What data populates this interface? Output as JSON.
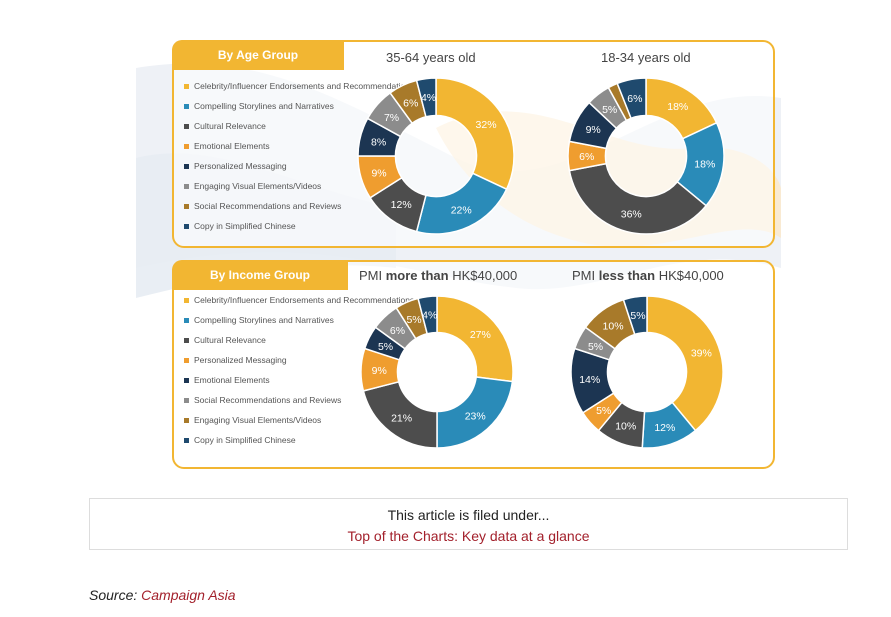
{
  "colors": {
    "yellow": "#f2b632",
    "blue": "#2a8bb8",
    "darkgray": "#4d4d4d",
    "orange": "#ef9d2f",
    "navy": "#1c3552",
    "gray": "#8c8c8c",
    "brown": "#a87a2a",
    "steel": "#1f4a6e",
    "link": "#a3212c"
  },
  "age_group": {
    "tab": "By Age Group",
    "legend": [
      {
        "label": "Celebrity/Influencer Endorsements and Recommendations",
        "color": "#f2b632"
      },
      {
        "label": "Compelling Storylines and Narratives",
        "color": "#2a8bb8"
      },
      {
        "label": "Cultural Relevance",
        "color": "#4d4d4d"
      },
      {
        "label": "Emotional Elements",
        "color": "#ef9d2f"
      },
      {
        "label": "Personalized Messaging",
        "color": "#1c3552"
      },
      {
        "label": "Engaging Visual Elements/Videos",
        "color": "#8c8c8c"
      },
      {
        "label": "Social Recommendations and Reviews",
        "color": "#a87a2a"
      },
      {
        "label": "Copy in Simplified Chinese",
        "color": "#1f4a6e"
      }
    ]
  },
  "income_group": {
    "tab": "By Income Group",
    "legend": [
      {
        "label": "Celebrity/Influencer Endorsements and Recommendations",
        "color": "#f2b632"
      },
      {
        "label": "Compelling Storylines and Narratives",
        "color": "#2a8bb8"
      },
      {
        "label": "Cultural Relevance",
        "color": "#4d4d4d"
      },
      {
        "label": "Personalized Messaging",
        "color": "#ef9d2f"
      },
      {
        "label": "Emotional Elements",
        "color": "#1c3552"
      },
      {
        "label": "Social Recommendations and Reviews",
        "color": "#8c8c8c"
      },
      {
        "label": "Engaging Visual Elements/Videos",
        "color": "#a87a2a"
      },
      {
        "label": "Copy in Simplified Chinese",
        "color": "#1f4a6e"
      }
    ]
  },
  "chart_data": [
    {
      "type": "pie",
      "title": "35-64 years old",
      "categories": [
        "Celebrity/Influencer Endorsements and Recommendations",
        "Compelling Storylines and Narratives",
        "Cultural Relevance",
        "Emotional Elements",
        "Personalized Messaging",
        "Engaging Visual Elements/Videos",
        "Social Recommendations and Reviews",
        "Copy in Simplified Chinese"
      ],
      "values": [
        32,
        22,
        12,
        9,
        8,
        7,
        6,
        4
      ],
      "labels": [
        "32%",
        "22%",
        "12%",
        "9%",
        "8%",
        "7%",
        "6%",
        "4%"
      ],
      "colors": [
        "#f2b632",
        "#2a8bb8",
        "#4d4d4d",
        "#ef9d2f",
        "#1c3552",
        "#8c8c8c",
        "#a87a2a",
        "#1f4a6e"
      ]
    },
    {
      "type": "pie",
      "title": "18-34 years old",
      "categories": [
        "Celebrity/Influencer Endorsements and Recommendations",
        "Compelling Storylines and Narratives",
        "Cultural Relevance",
        "Emotional Elements",
        "Personalized Messaging",
        "Engaging Visual Elements/Videos",
        "Social Recommendations and Reviews",
        "Copy in Simplified Chinese"
      ],
      "values": [
        18,
        18,
        36,
        6,
        9,
        5,
        2,
        6
      ],
      "labels": [
        "18%",
        "18%",
        "36%",
        "6%",
        "9%",
        "5%",
        "",
        "6%"
      ],
      "colors": [
        "#f2b632",
        "#2a8bb8",
        "#4d4d4d",
        "#ef9d2f",
        "#1c3552",
        "#8c8c8c",
        "#a87a2a",
        "#1f4a6e"
      ]
    },
    {
      "type": "pie",
      "title_prefix": "PMI",
      "title_bold": "more than",
      "title_suffix": "HK$40,000",
      "categories": [
        "Celebrity/Influencer Endorsements and Recommendations",
        "Compelling Storylines and Narratives",
        "Cultural Relevance",
        "Personalized Messaging",
        "Emotional Elements",
        "Social Recommendations and Reviews",
        "Engaging Visual Elements/Videos",
        "Copy in Simplified Chinese"
      ],
      "values": [
        27,
        23,
        21,
        9,
        5,
        6,
        5,
        4
      ],
      "labels": [
        "27%",
        "23%",
        "21%",
        "9%",
        "5%",
        "6%",
        "5%",
        "4%"
      ],
      "colors": [
        "#f2b632",
        "#2a8bb8",
        "#4d4d4d",
        "#ef9d2f",
        "#1c3552",
        "#8c8c8c",
        "#a87a2a",
        "#1f4a6e"
      ]
    },
    {
      "type": "pie",
      "title_prefix": "PMI",
      "title_bold": "less than",
      "title_suffix": "HK$40,000",
      "categories": [
        "Celebrity/Influencer Endorsements and Recommendations",
        "Compelling Storylines and Narratives",
        "Cultural Relevance",
        "Personalized Messaging",
        "Emotional Elements",
        "Social Recommendations and Reviews",
        "Engaging Visual Elements/Videos",
        "Copy in Simplified Chinese"
      ],
      "values": [
        39,
        12,
        10,
        5,
        14,
        5,
        10,
        5
      ],
      "labels": [
        "39%",
        "12%",
        "10%",
        "5%",
        "14%",
        "5%",
        "10%",
        "5%"
      ],
      "colors": [
        "#f2b632",
        "#2a8bb8",
        "#4d4d4d",
        "#ef9d2f",
        "#1c3552",
        "#8c8c8c",
        "#a87a2a",
        "#1f4a6e"
      ]
    }
  ],
  "filed": {
    "heading": "This article is filed under...",
    "link": "Top of the Charts: Key data at a glance"
  },
  "source": {
    "prefix": "Source:",
    "link": "Campaign Asia"
  }
}
